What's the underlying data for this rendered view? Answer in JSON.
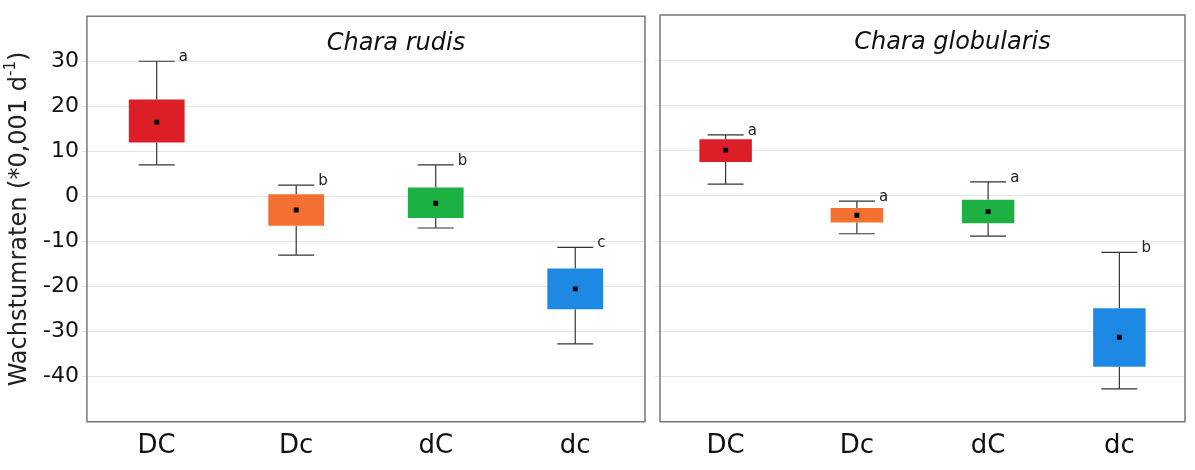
{
  "chart_data": [
    {
      "type": "box",
      "title": "Chara rudis",
      "ylabel": "Wachstumraten (*0,001 d$^{-1}$)",
      "categories": [
        "DC",
        "Dc",
        "dC",
        "dc"
      ],
      "colors": [
        "#dc1f26",
        "#f47030",
        "#1db144",
        "#1e88e5"
      ],
      "ylim": [
        -50,
        40
      ],
      "yticks": [
        -40,
        -30,
        -20,
        -10,
        0,
        10,
        20,
        30
      ],
      "grid": "y",
      "boxes": [
        {
          "low": 7,
          "q1": 12,
          "median": 16.5,
          "q3": 21.5,
          "high": 30
        },
        {
          "low": -13,
          "q1": -6.5,
          "median": -3,
          "q3": 0.5,
          "high": 2.5
        },
        {
          "low": -7,
          "q1": -4.8,
          "median": -1.5,
          "q3": 2,
          "high": 7
        },
        {
          "low": -32.7,
          "q1": -25,
          "median": -20.5,
          "q3": -16,
          "high": -11.3
        }
      ],
      "annotations": [
        {
          "text": "a",
          "x": "DC",
          "y": 30
        },
        {
          "text": "b",
          "x": "Dc",
          "y": 2.5
        },
        {
          "text": "b",
          "x": "dC",
          "y": 7
        },
        {
          "text": "c",
          "x": "dc",
          "y": -11.3
        }
      ]
    },
    {
      "type": "box",
      "title": "Chara globularis",
      "categories": [
        "DC",
        "Dc",
        "dC",
        "dc"
      ],
      "colors": [
        "#dc1f26",
        "#f47030",
        "#1db144",
        "#1e88e5"
      ],
      "ylim": [
        -50,
        40
      ],
      "yticks": [
        -40,
        -30,
        -20,
        -10,
        0,
        10,
        20,
        30
      ],
      "grid": "y",
      "tick_labels": "x",
      "boxes": [
        {
          "low": 2.6,
          "q1": 7.5,
          "median": 10.1,
          "q3": 12.5,
          "high": 13.5
        },
        {
          "low": -8.4,
          "q1": -5.9,
          "median": -4.3,
          "q3": -2.7,
          "high": -1.2
        },
        {
          "low": -8.9,
          "q1": -6.1,
          "median": -3.5,
          "q3": -0.9,
          "high": 3.1
        },
        {
          "low": -42.7,
          "q1": -37.8,
          "median": -31.3,
          "q3": -24.9,
          "high": -12.5
        }
      ],
      "annotations": [
        {
          "text": "a",
          "x": "DC",
          "y": 13.5
        },
        {
          "text": "a",
          "x": "Dc",
          "y": -1.2
        },
        {
          "text": "a",
          "x": "dC",
          "y": 3.1
        },
        {
          "text": "b",
          "x": "dc",
          "y": -12.5
        }
      ]
    }
  ]
}
